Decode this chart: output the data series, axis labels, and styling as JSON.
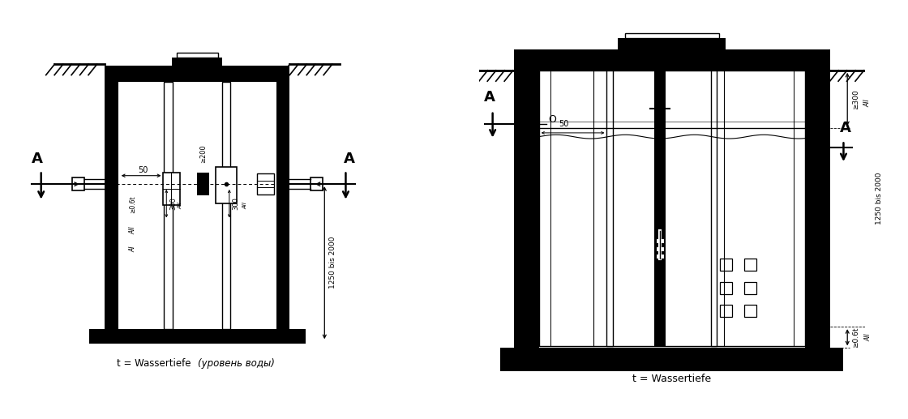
{
  "bg_color": "#ffffff",
  "line_color": "#000000",
  "fig_width": 11.2,
  "fig_height": 5.17,
  "label_left_normal": "t = Wassertiefe  ",
  "label_left_italic": "(уровень воды)",
  "label_right": "t = Wassertiefe"
}
